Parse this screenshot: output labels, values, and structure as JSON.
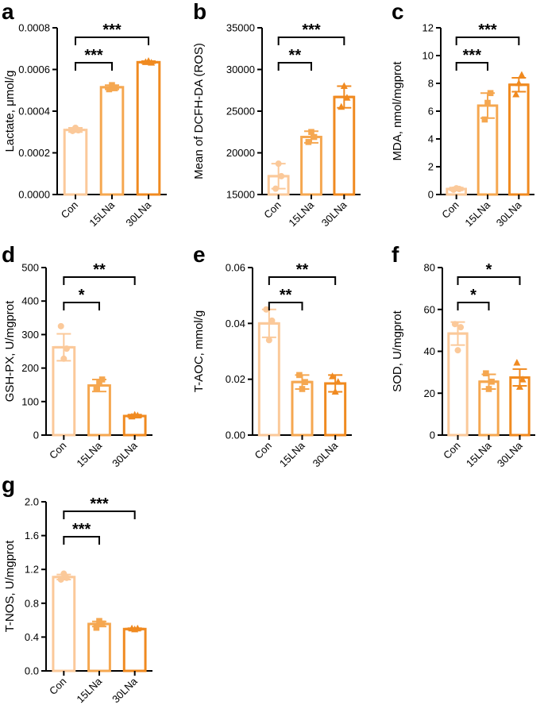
{
  "colors": {
    "con": "#FBC99A",
    "l15": "#F5A750",
    "l30": "#F08A20",
    "axis": "#000000"
  },
  "chart_data": [
    {
      "panel": "a",
      "type": "bar",
      "categories": [
        "Con",
        "15LNa",
        "30LNa"
      ],
      "values": [
        0.00031,
        0.000515,
        0.000635
      ],
      "errors": [
        1e-05,
        1e-05,
        5e-06
      ],
      "points": [
        [
          0.000305,
          0.00032,
          0.000308
        ],
        [
          0.000505,
          0.000525,
          0.00051
        ],
        [
          0.000635,
          0.00064,
          0.000632
        ]
      ],
      "ylabel": "Lactate, μmol/g",
      "ylim": [
        0,
        0.0008
      ],
      "yticks": [
        "0.0000",
        "0.0002",
        "0.0004",
        "0.0006",
        "0.0008"
      ],
      "sig": [
        {
          "from": 0,
          "to": 1,
          "label": "***"
        },
        {
          "from": 0,
          "to": 2,
          "label": "***"
        }
      ]
    },
    {
      "panel": "b",
      "type": "bar",
      "categories": [
        "Con",
        "15LNa",
        "30LNa"
      ],
      "values": [
        17200,
        21900,
        26700
      ],
      "errors": [
        1500,
        700,
        1300
      ],
      "points": [
        [
          15700,
          18700,
          17200
        ],
        [
          21300,
          22500,
          21900
        ],
        [
          25500,
          28000,
          26600
        ]
      ],
      "ylabel": "Mean of DCFH-DA (ROS)",
      "ylim": [
        15000,
        35000
      ],
      "yticks": [
        "15000",
        "20000",
        "25000",
        "30000",
        "35000"
      ],
      "sig": [
        {
          "from": 0,
          "to": 1,
          "label": "**"
        },
        {
          "from": 0,
          "to": 2,
          "label": "***"
        }
      ]
    },
    {
      "panel": "c",
      "type": "bar",
      "categories": [
        "Con",
        "15LNa",
        "30LNa"
      ],
      "values": [
        0.4,
        6.4,
        7.9
      ],
      "errors": [
        0.1,
        0.9,
        0.5
      ],
      "points": [
        [
          0.35,
          0.45,
          0.4
        ],
        [
          5.4,
          6.6,
          7.3
        ],
        [
          7.2,
          8.0,
          8.6
        ]
      ],
      "ylabel": "MDA, nmol/mgprot",
      "ylim": [
        0,
        12
      ],
      "yticks": [
        "0",
        "2",
        "4",
        "6",
        "8",
        "10",
        "12"
      ],
      "sig": [
        {
          "from": 0,
          "to": 1,
          "label": "***"
        },
        {
          "from": 0,
          "to": 2,
          "label": "***"
        }
      ]
    },
    {
      "panel": "d",
      "type": "bar",
      "categories": [
        "Con",
        "15LNa",
        "30LNa"
      ],
      "values": [
        262,
        148,
        57
      ],
      "errors": [
        40,
        18,
        4
      ],
      "points": [
        [
          325,
          228,
          258
        ],
        [
          138,
          158,
          166
        ],
        [
          55,
          60,
          58
        ]
      ],
      "ylabel": "GSH-PX, U/mgprot",
      "ylim": [
        0,
        500
      ],
      "yticks": [
        "0",
        "100",
        "200",
        "300",
        "400",
        "500"
      ],
      "sig": [
        {
          "from": 0,
          "to": 1,
          "label": "*"
        },
        {
          "from": 0,
          "to": 2,
          "label": "**"
        }
      ]
    },
    {
      "panel": "e",
      "type": "bar",
      "categories": [
        "Con",
        "15LNa",
        "30LNa"
      ],
      "values": [
        0.04,
        0.019,
        0.0185
      ],
      "errors": [
        0.005,
        0.0025,
        0.003
      ],
      "points": [
        [
          0.045,
          0.034,
          0.041
        ],
        [
          0.0215,
          0.0165,
          0.019
        ],
        [
          0.021,
          0.0155,
          0.019
        ]
      ],
      "ylabel": "T-AOC, mmol/g",
      "ylim": [
        0,
        0.06
      ],
      "yticks": [
        "0.00",
        "0.02",
        "0.04",
        "0.06"
      ],
      "sig": [
        {
          "from": 0,
          "to": 1,
          "label": "**"
        },
        {
          "from": 0,
          "to": 2,
          "label": "**"
        }
      ]
    },
    {
      "panel": "f",
      "type": "bar",
      "categories": [
        "Con",
        "15LNa",
        "30LNa"
      ],
      "values": [
        48.5,
        25.5,
        27.5
      ],
      "errors": [
        5.5,
        3.5,
        4
      ],
      "points": [
        [
          53,
          40.5,
          51.5
        ],
        [
          29.5,
          22,
          25.5
        ],
        [
          34.5,
          23,
          26.5
        ]
      ],
      "ylabel": "SOD, U/mgprot",
      "ylim": [
        0,
        80
      ],
      "yticks": [
        "0",
        "20",
        "40",
        "60",
        "80"
      ],
      "sig": [
        {
          "from": 0,
          "to": 1,
          "label": "*"
        },
        {
          "from": 0,
          "to": 2,
          "label": "*"
        }
      ]
    },
    {
      "panel": "g",
      "type": "bar",
      "categories": [
        "Con",
        "15LNa",
        "30LNa"
      ],
      "values": [
        1.11,
        0.555,
        0.495
      ],
      "errors": [
        0.03,
        0.03,
        0.01
      ],
      "points": [
        [
          1.08,
          1.15,
          1.1
        ],
        [
          0.51,
          0.59,
          0.56
        ],
        [
          0.5,
          0.49,
          0.5
        ]
      ],
      "ylabel": "T-NOS, U/mgprot",
      "ylim": [
        0,
        2.0
      ],
      "yticks": [
        "0.0",
        "0.4",
        "0.8",
        "1.2",
        "1.6",
        "2.0"
      ],
      "sig": [
        {
          "from": 0,
          "to": 1,
          "label": "***"
        },
        {
          "from": 0,
          "to": 2,
          "label": "***"
        }
      ]
    }
  ]
}
